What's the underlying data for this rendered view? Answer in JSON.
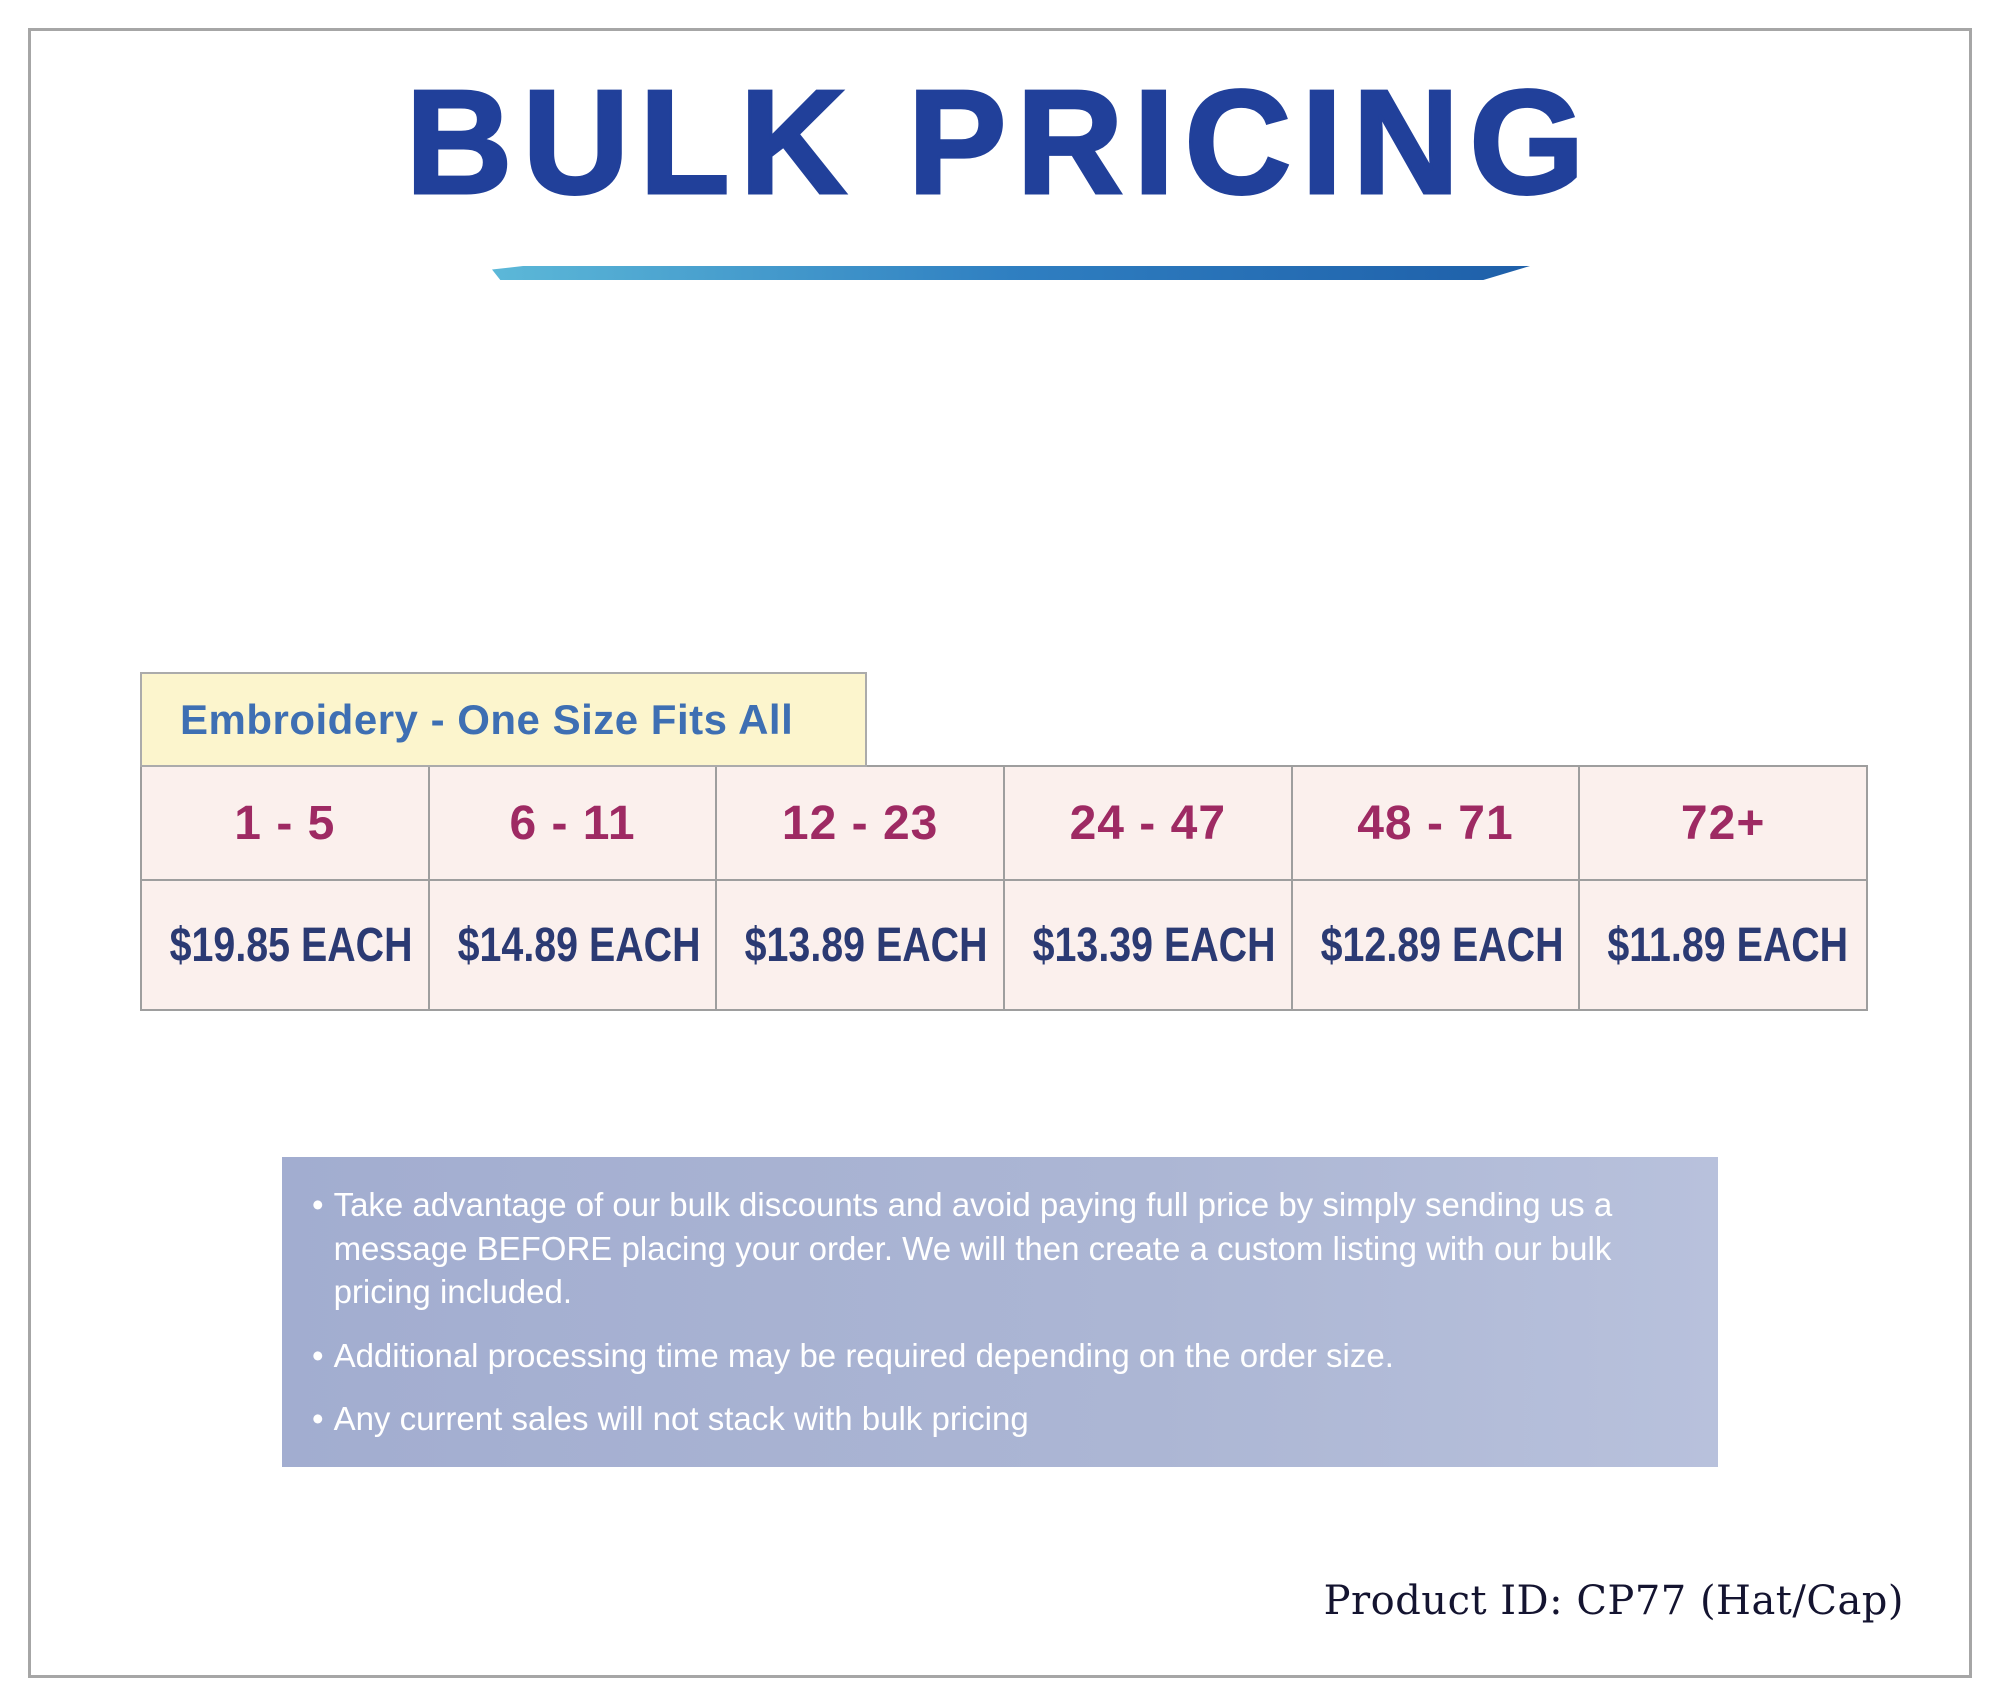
{
  "page": {
    "title": "BULK PRICING",
    "product_id": "Product ID: CP77 (Hat/Cap)"
  },
  "pricing": {
    "category_label": "Embroidery - One Size Fits All",
    "tiers": [
      {
        "range": "1 - 5",
        "price": "$19.85 EACH"
      },
      {
        "range": "6 - 11",
        "price": "$14.89 EACH"
      },
      {
        "range": "12 - 23",
        "price": "$13.89 EACH"
      },
      {
        "range": "24 - 47",
        "price": "$13.39 EACH"
      },
      {
        "range": "48 - 71",
        "price": "$12.89 EACH"
      },
      {
        "range": "72+",
        "price": "$11.89 EACH"
      }
    ]
  },
  "notes": {
    "bullet": "•",
    "items": [
      "Take advantage of our bulk discounts and avoid paying full price by simply sending us a message BEFORE placing your order. We will then create a custom listing with our bulk pricing included.",
      "Additional processing time may be required depending on the order size.",
      "Any current sales will not stack with bulk pricing"
    ]
  },
  "colors": {
    "title_blue": "#21409a",
    "range_magenta": "#9e2a63",
    "price_navy": "#2b3a73",
    "label_blue": "#3e6fb3",
    "label_bg": "#fcf5cd",
    "cell_bg": "#fbf0ed",
    "notes_bg": "#aab4d4",
    "swoosh_start": "#5cb8d8",
    "swoosh_end": "#1e5fa9"
  }
}
